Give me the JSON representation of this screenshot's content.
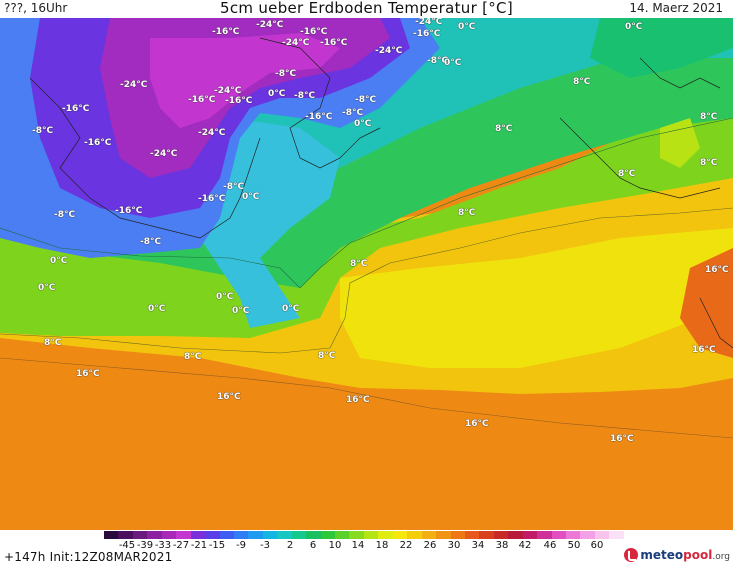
{
  "header": {
    "left": "???, 16Uhr",
    "title": "5cm ueber Erdboden Temperatur [°C]",
    "right": "14. Maerz 2021"
  },
  "footer": {
    "init": "+147h  Init:12Z08MAR2021",
    "logo_brand": "meteo",
    "logo_brand2": "pool",
    "logo_tld": ".org"
  },
  "legend": {
    "ticks": [
      "-45",
      "-39",
      "-33",
      "-27",
      "-21",
      "-15",
      "-9",
      "-3",
      "2",
      "6",
      "10",
      "14",
      "18",
      "22",
      "26",
      "30",
      "34",
      "38",
      "42",
      "46",
      "50",
      "60"
    ],
    "colors": [
      "#2a0a3a",
      "#4b0f5e",
      "#6b1a80",
      "#8c22a0",
      "#a829b8",
      "#c336cf",
      "#7a2fd8",
      "#5a3ee8",
      "#3f5cf2",
      "#2f7cf5",
      "#1d9bf0",
      "#12b6e0",
      "#16c8c0",
      "#14c890",
      "#18c060",
      "#2cc83a",
      "#5ad22a",
      "#86dc1c",
      "#b4e414",
      "#dfec10",
      "#f6e70c",
      "#f4cd0c",
      "#f2b10e",
      "#f09412",
      "#ee7716",
      "#e85a1c",
      "#d8401e",
      "#c82a28",
      "#b81a3a",
      "#c01a68",
      "#d0309a",
      "#e050c0",
      "#ec78d8",
      "#f4a0e6",
      "#f8c4ee",
      "#fbe0f6"
    ]
  },
  "map_labels": [
    {
      "text": "-24°C"
    },
    {
      "text": "-16°C"
    },
    {
      "text": "-16°C"
    },
    {
      "text": "-24°C"
    },
    {
      "text": "0°C"
    },
    {
      "text": "0°C"
    },
    {
      "text": "-24°C"
    },
    {
      "text": "-16°C"
    },
    {
      "text": "-16°C"
    },
    {
      "text": "-8°C"
    },
    {
      "text": "-24°C"
    },
    {
      "text": "-8°C"
    },
    {
      "text": "0°C"
    },
    {
      "text": "-24°C"
    },
    {
      "text": "-24°C"
    },
    {
      "text": "-16°C"
    },
    {
      "text": "0°C"
    },
    {
      "text": "-8°C"
    },
    {
      "text": "-8°C"
    },
    {
      "text": "8°C"
    },
    {
      "text": "-16°C"
    },
    {
      "text": "-8°C"
    },
    {
      "text": "-16°C"
    },
    {
      "text": "-16°C"
    },
    {
      "text": "0°C"
    },
    {
      "text": "8°C"
    },
    {
      "text": "8°C"
    },
    {
      "text": "-16°C"
    },
    {
      "text": "-24°C"
    },
    {
      "text": "-24°C"
    },
    {
      "text": "8°C"
    },
    {
      "text": "8°C"
    },
    {
      "text": "-8°C"
    },
    {
      "text": "-16°C"
    },
    {
      "text": "0°C"
    },
    {
      "text": "-8°C"
    },
    {
      "text": "-16°C"
    },
    {
      "text": "8°C"
    },
    {
      "text": "-8°C"
    },
    {
      "text": "-8°C"
    },
    {
      "text": "0°C"
    },
    {
      "text": "8°C"
    },
    {
      "text": "16°C"
    },
    {
      "text": "0°C"
    },
    {
      "text": "0°C"
    },
    {
      "text": "0°C"
    },
    {
      "text": "0°C"
    },
    {
      "text": "0°C"
    },
    {
      "text": "8°C"
    },
    {
      "text": "8°C"
    },
    {
      "text": "8°C"
    },
    {
      "text": "16°C"
    },
    {
      "text": "16°C"
    },
    {
      "text": "16°C"
    },
    {
      "text": "16°C"
    },
    {
      "text": "16°C"
    },
    {
      "text": "16°C"
    }
  ]
}
